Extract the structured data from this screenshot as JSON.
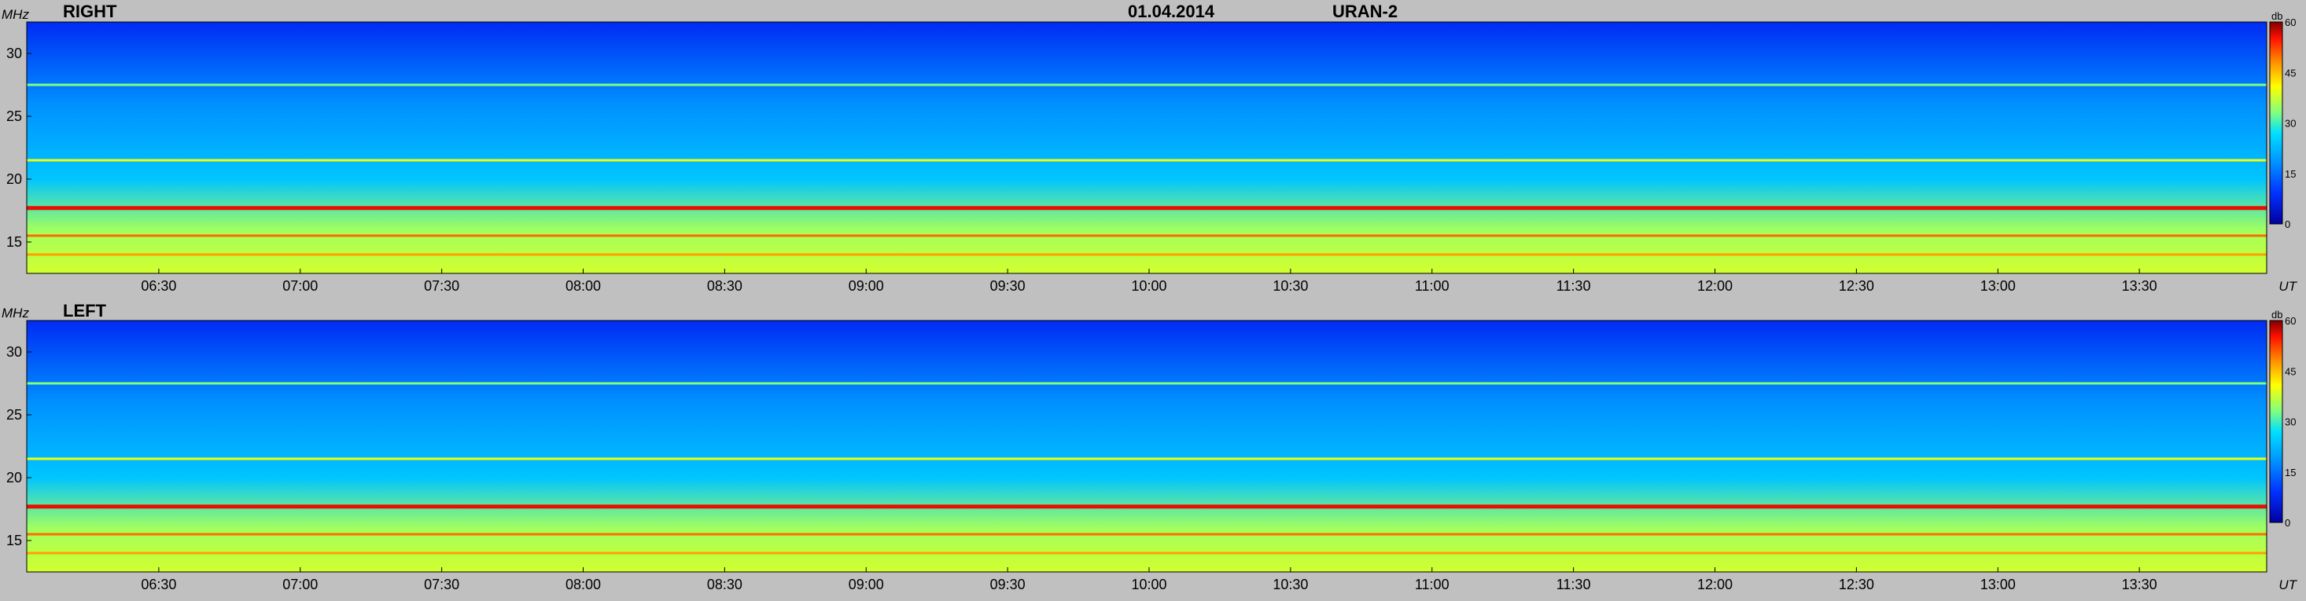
{
  "header": {
    "date": "01.04.2014",
    "instrument": "URAN-2"
  },
  "chart_data": [
    {
      "type": "heatmap",
      "panel_label": "RIGHT",
      "ylabel": "MHz",
      "xlabel": "UT",
      "x_ticks": [
        "06:30",
        "07:00",
        "07:30",
        "08:00",
        "08:30",
        "09:00",
        "09:30",
        "10:00",
        "10:30",
        "11:00",
        "11:30",
        "12:00",
        "12:30",
        "13:00",
        "13:30"
      ],
      "x_range": [
        "06:02",
        "13:57"
      ],
      "y_ticks": [
        15,
        20,
        25,
        30
      ],
      "ylim": [
        12.5,
        32.5
      ],
      "colorbar": {
        "label": "db",
        "ticks": [
          0,
          15,
          30,
          45,
          60
        ],
        "range": [
          0,
          60
        ]
      },
      "bands": [
        {
          "freq": 17.7,
          "db": 56
        },
        {
          "freq": 15.5,
          "db": 50
        },
        {
          "freq": 14.0,
          "db": 47
        },
        {
          "freq": 21.5,
          "db": 40
        },
        {
          "freq": 27.5,
          "db": 33
        }
      ],
      "background_db": {
        "at_13MHz": 38,
        "at_20MHz": 24,
        "at_32MHz": 8
      }
    },
    {
      "type": "heatmap",
      "panel_label": "LEFT",
      "ylabel": "MHz",
      "xlabel": "UT",
      "x_ticks": [
        "06:30",
        "07:00",
        "07:30",
        "08:00",
        "08:30",
        "09:00",
        "09:30",
        "10:00",
        "10:30",
        "11:00",
        "11:30",
        "12:00",
        "12:30",
        "13:00",
        "13:30"
      ],
      "x_range": [
        "06:02",
        "13:57"
      ],
      "y_ticks": [
        15,
        20,
        25,
        30
      ],
      "ylim": [
        12.5,
        32.5
      ],
      "colorbar": {
        "label": "db",
        "ticks": [
          0,
          15,
          30,
          45,
          60
        ],
        "range": [
          0,
          60
        ]
      },
      "bands": [
        {
          "freq": 17.7,
          "db": 56
        },
        {
          "freq": 15.5,
          "db": 50
        },
        {
          "freq": 14.0,
          "db": 47
        },
        {
          "freq": 21.5,
          "db": 40
        },
        {
          "freq": 27.5,
          "db": 33
        }
      ],
      "background_db": {
        "at_13MHz": 38,
        "at_20MHz": 24,
        "at_32MHz": 8
      }
    }
  ]
}
